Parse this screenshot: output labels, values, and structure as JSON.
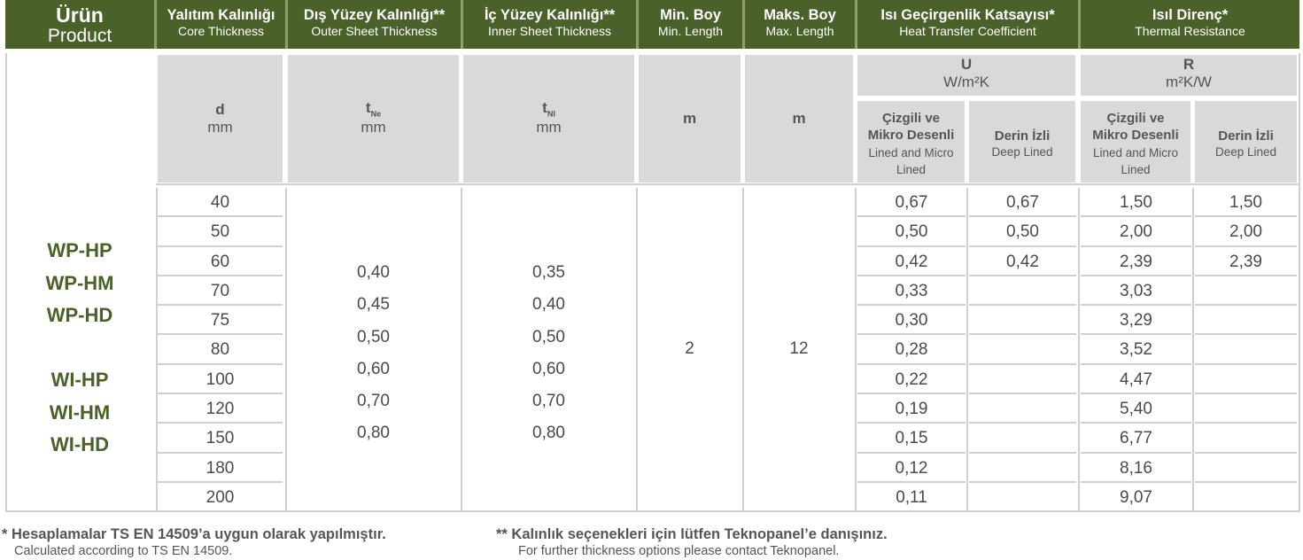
{
  "header": {
    "product": {
      "tr": "Ürün",
      "en": "Product"
    },
    "core": {
      "tr": "Yalıtım Kalınlığı",
      "en": "Core Thickness"
    },
    "outer": {
      "tr": "Dış Yüzey Kalınlığı**",
      "en": "Outer Sheet Thickness"
    },
    "inner": {
      "tr": "İç Yüzey Kalınlığı**",
      "en": "Inner Sheet Thickness"
    },
    "min_len": {
      "tr": "Min. Boy",
      "en": "Min. Length"
    },
    "max_len": {
      "tr": "Maks. Boy",
      "en": "Max. Length"
    },
    "htc": {
      "tr": "Isı Geçirgenlik Katsayısı*",
      "en": "Heat Transfer Coefficient"
    },
    "thermal": {
      "tr": "Isıl Direnç*",
      "en": "Thermal Resistance"
    }
  },
  "units": {
    "d": "d",
    "d_unit": "mm",
    "tne": "t",
    "tne_sub": "Ne",
    "tne_unit": "mm",
    "tni": "t",
    "tni_sub": "NI",
    "tni_unit": "mm",
    "min_unit": "m",
    "max_unit": "m",
    "u": "U",
    "u_unit": "W/m²K",
    "r": "R",
    "r_unit": "m²K/W",
    "lined_tr_1": "Çizgili ve",
    "lined_tr_2": "Mikro Desenli",
    "lined_en_1": "Lined and Micro",
    "lined_en_2": "Lined",
    "deep_tr": "Derin İzli",
    "deep_en": "Deep Lined"
  },
  "products": [
    "WP-HP",
    "WP-HM",
    "WP-HD",
    "",
    "WI-HP",
    "WI-HM",
    "WI-HD"
  ],
  "thickness": [
    "40",
    "50",
    "60",
    "70",
    "75",
    "80",
    "100",
    "120",
    "150",
    "180",
    "200"
  ],
  "outer_values": [
    "0,40",
    "0,45",
    "0,50",
    "0,60",
    "0,70",
    "0,80"
  ],
  "inner_values": [
    "0,35",
    "0,40",
    "0,50",
    "0,60",
    "0,70",
    "0,80"
  ],
  "min_length": "2",
  "max_length": "12",
  "u_lined": [
    "0,67",
    "0,50",
    "0,42",
    "0,33",
    "0,30",
    "0,28",
    "0,22",
    "0,19",
    "0,15",
    "0,12",
    "0,11"
  ],
  "u_deep": [
    "0,67",
    "0,50",
    "0,42",
    "",
    "",
    "",
    "",
    "",
    "",
    "",
    ""
  ],
  "r_lined": [
    "1,50",
    "2,00",
    "2,39",
    "3,03",
    "3,29",
    "3,52",
    "4,47",
    "5,40",
    "6,77",
    "8,16",
    "9,07"
  ],
  "r_deep": [
    "1,50",
    "2,00",
    "2,39",
    "",
    "",
    "",
    "",
    "",
    "",
    "",
    ""
  ],
  "notes": {
    "n1_tr": "* Hesaplamalar TS EN 14509’a uygun olarak yapılmıştır.",
    "n1_en": "Calculated according to TS EN 14509.",
    "n2_tr": "** Kalınlık seçenekleri için lütfen Teknopanel’e danışınız.",
    "n2_en": "For further thickness options please contact Teknopanel."
  }
}
